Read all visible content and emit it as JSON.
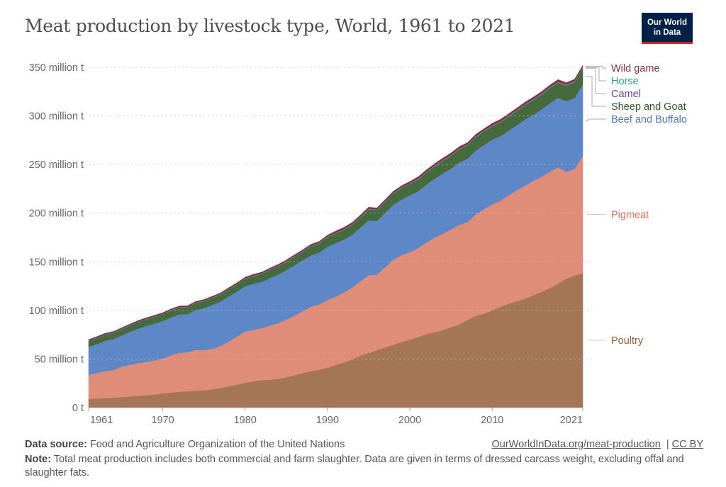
{
  "title": "Meat production by livestock type, World, 1961 to 2021",
  "logo": {
    "line1": "Our World",
    "line2": "in Data",
    "bg": "#002147",
    "accent": "#ce261e"
  },
  "footer": {
    "source_label": "Data source:",
    "source_text": "Food and Agriculture Organization of the United Nations",
    "link": "OurWorldInData.org/meat-production",
    "license": "CC BY",
    "note_label": "Note:",
    "note_text": "Total meat production includes both commercial and farm slaughter. Data are given in terms of dressed carcass weight, excluding offal and slaughter fats."
  },
  "chart_data": {
    "type": "area",
    "stacked": true,
    "title": "Meat production by livestock type, World, 1961 to 2021",
    "x_start": 1961,
    "x_end": 2021,
    "xticks": [
      "1961",
      "1970",
      "1980",
      "1990",
      "2000",
      "2010",
      "2021"
    ],
    "ylim": [
      0,
      350
    ],
    "yticks": [
      0,
      50,
      100,
      150,
      200,
      250,
      300,
      350
    ],
    "ytick_labels": [
      "0 t",
      "50 million t",
      "100 million t",
      "150 million t",
      "200 million t",
      "250 million t",
      "300 million t",
      "350 million t"
    ],
    "grid": "horizontal dashed",
    "legend": "right, inline labels",
    "series": [
      {
        "name": "Poultry",
        "color": "#a47656",
        "label_color": "#9a5a34",
        "values": [
          8.9,
          9.3,
          9.8,
          10.3,
          10.8,
          11.5,
          12.1,
          12.6,
          13.5,
          14.6,
          15.4,
          16.4,
          16.7,
          17.3,
          17.7,
          18.9,
          20.2,
          21.9,
          23.7,
          25.6,
          27.0,
          28.2,
          28.6,
          29.6,
          31.2,
          33.3,
          35.5,
          37.6,
          38.9,
          41.2,
          43.9,
          46.6,
          49.6,
          53.4,
          56.3,
          59.0,
          61.9,
          64.6,
          67.5,
          70.0,
          72.6,
          75.7,
          77.5,
          79.7,
          82.6,
          85.6,
          90.2,
          94.3,
          96.5,
          100.0,
          103.7,
          106.8,
          109.5,
          112.1,
          115.5,
          119.2,
          123.0,
          127.3,
          132.6,
          135.6,
          138.5
        ]
      },
      {
        "name": "Pigmeat",
        "color": "#df8c79",
        "label_color": "#e0705e",
        "values": [
          24.7,
          26.4,
          27.5,
          28.5,
          31.3,
          32.4,
          33.7,
          34.4,
          35.0,
          35.8,
          38.5,
          40.0,
          40.4,
          42.0,
          41.5,
          41.4,
          43.0,
          46.0,
          49.6,
          52.7,
          53.0,
          53.5,
          56.0,
          57.3,
          59.4,
          61.3,
          63.7,
          66.4,
          67.3,
          69.6,
          70.3,
          71.8,
          73.8,
          76.5,
          80.0,
          77.7,
          82.5,
          87.5,
          89.4,
          89.9,
          91.6,
          94.1,
          97.3,
          99.3,
          100.7,
          102.4,
          100.7,
          104.4,
          107.7,
          109.0,
          109.2,
          111.7,
          113.9,
          116.2,
          117.8,
          118.3,
          119.7,
          119.8,
          110.0,
          109.8,
          120.4
        ]
      },
      {
        "name": "Beef and Buffalo",
        "color": "#5d87c6",
        "label_color": "#4f78b8",
        "values": [
          28.8,
          29.6,
          31.3,
          31.6,
          32.1,
          33.9,
          35.4,
          37.0,
          38.0,
          38.7,
          38.9,
          39.4,
          39.1,
          41.2,
          43.2,
          45.3,
          45.9,
          46.4,
          45.9,
          46.6,
          47.3,
          47.6,
          48.6,
          50.0,
          50.7,
          51.9,
          52.3,
          52.8,
          53.2,
          54.8,
          55.0,
          54.5,
          54.4,
          55.3,
          56.4,
          55.2,
          56.0,
          56.6,
          57.2,
          58.4,
          58.3,
          59.5,
          60.6,
          61.8,
          62.5,
          64.0,
          65.1,
          65.7,
          65.8,
          66.7,
          66.3,
          66.4,
          67.3,
          68.1,
          68.0,
          69.3,
          70.5,
          71.6,
          72.6,
          73.1,
          73.7
        ]
      },
      {
        "name": "Sheep and Goat",
        "color": "#456b3d",
        "label_color": "#2f5a2a",
        "values": [
          6.0,
          6.1,
          6.2,
          6.3,
          6.3,
          6.5,
          6.7,
          6.8,
          6.8,
          6.9,
          6.9,
          6.9,
          6.8,
          6.9,
          7.0,
          7.1,
          7.1,
          7.2,
          7.3,
          7.5,
          7.7,
          7.9,
          8.1,
          8.3,
          8.4,
          8.6,
          8.8,
          9.1,
          9.5,
          9.7,
          9.9,
          10.0,
          10.1,
          10.5,
          10.9,
          11.0,
          11.1,
          11.4,
          11.6,
          11.8,
          11.9,
          12.2,
          12.5,
          12.8,
          13.1,
          13.4,
          13.6,
          13.8,
          13.8,
          13.8,
          13.9,
          14.0,
          14.2,
          14.5,
          14.8,
          15.0,
          15.2,
          15.4,
          15.7,
          16.0,
          16.2
        ]
      },
      {
        "name": "Camel",
        "color": "#7d5da0",
        "label_color": "#6b4590",
        "values": [
          0.18,
          0.18,
          0.18,
          0.18,
          0.18,
          0.18,
          0.18,
          0.18,
          0.18,
          0.18,
          0.2,
          0.2,
          0.2,
          0.2,
          0.2,
          0.2,
          0.2,
          0.2,
          0.2,
          0.2,
          0.25,
          0.25,
          0.25,
          0.25,
          0.25,
          0.25,
          0.25,
          0.25,
          0.25,
          0.25,
          0.3,
          0.3,
          0.3,
          0.3,
          0.3,
          0.3,
          0.3,
          0.3,
          0.3,
          0.3,
          0.4,
          0.4,
          0.4,
          0.4,
          0.4,
          0.4,
          0.4,
          0.4,
          0.4,
          0.4,
          0.55,
          0.55,
          0.55,
          0.55,
          0.55,
          0.55,
          0.55,
          0.55,
          0.55,
          0.55,
          0.55
        ]
      },
      {
        "name": "Horse",
        "color": "#3c9d94",
        "label_color": "#35998f",
        "values": [
          0.45,
          0.45,
          0.45,
          0.45,
          0.45,
          0.45,
          0.45,
          0.45,
          0.45,
          0.45,
          0.5,
          0.5,
          0.5,
          0.5,
          0.5,
          0.5,
          0.5,
          0.5,
          0.5,
          0.5,
          0.55,
          0.55,
          0.55,
          0.55,
          0.55,
          0.55,
          0.55,
          0.55,
          0.55,
          0.55,
          0.6,
          0.6,
          0.6,
          0.6,
          0.6,
          0.6,
          0.6,
          0.6,
          0.6,
          0.6,
          0.7,
          0.7,
          0.7,
          0.7,
          0.7,
          0.7,
          0.7,
          0.7,
          0.7,
          0.7,
          0.8,
          0.8,
          0.8,
          0.8,
          0.8,
          0.8,
          0.8,
          0.8,
          0.8,
          0.8,
          0.8
        ]
      },
      {
        "name": "Wild game",
        "color": "#8b2e3e",
        "label_color": "#883039",
        "values": [
          1.0,
          1.0,
          1.0,
          1.0,
          1.0,
          1.0,
          1.0,
          1.0,
          1.0,
          1.0,
          1.1,
          1.1,
          1.1,
          1.1,
          1.1,
          1.1,
          1.1,
          1.1,
          1.1,
          1.1,
          1.3,
          1.3,
          1.3,
          1.3,
          1.3,
          1.3,
          1.3,
          1.3,
          1.3,
          1.3,
          1.6,
          1.6,
          1.6,
          1.6,
          1.6,
          1.6,
          1.6,
          1.6,
          1.6,
          1.6,
          1.9,
          1.9,
          1.9,
          1.9,
          1.9,
          1.9,
          1.9,
          1.9,
          1.9,
          1.9,
          2.0,
          2.0,
          2.0,
          2.0,
          2.0,
          2.0,
          2.0,
          2.0,
          2.0,
          2.0,
          2.0
        ]
      }
    ]
  }
}
